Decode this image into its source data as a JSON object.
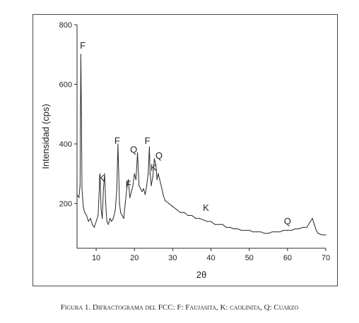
{
  "chart_data": {
    "type": "line",
    "xlabel": "2θ",
    "ylabel": "Intensidad (cps)",
    "xlim": [
      5,
      70
    ],
    "ylim": [
      50,
      800
    ],
    "x_ticks": [
      10,
      20,
      30,
      40,
      50,
      60,
      70
    ],
    "y_ticks": [
      200,
      400,
      600,
      800
    ],
    "grid": false,
    "series": [
      {
        "x": [
          5,
          5.5,
          5.8,
          6.0,
          6.15,
          6.3,
          6.6,
          7.0,
          7.5,
          8.0,
          8.5,
          9.0,
          9.5,
          10.0,
          10.5,
          11.0,
          11.3,
          11.6,
          11.9,
          12.2,
          12.5,
          12.8,
          13.2,
          13.6,
          14.0,
          14.5,
          15.0,
          15.4,
          15.7,
          15.9,
          16.1,
          16.4,
          16.8,
          17.2,
          17.6,
          18.0,
          18.4,
          18.8,
          19.2,
          19.6,
          20.0,
          20.4,
          20.8,
          21.2,
          21.6,
          22.0,
          22.4,
          22.8,
          23.2,
          23.6,
          23.9,
          24.1,
          24.4,
          24.8,
          25.2,
          25.6,
          25.9,
          26.2,
          26.6,
          27.0,
          27.5,
          28.0,
          29.0,
          30.0,
          31.0,
          32.0,
          33.0,
          34.0,
          35.0,
          36.0,
          37.0,
          38.0,
          39.0,
          40.0,
          41.0,
          42.0,
          43.0,
          44.0,
          45.0,
          46.0,
          47.0,
          48.0,
          49.0,
          50.0,
          51.0,
          52.0,
          53.0,
          54.0,
          55.0,
          56.0,
          57.0,
          58.0,
          59.0,
          60.0,
          61.0,
          62.0,
          63.0,
          64.0,
          65.0,
          66.0,
          66.5,
          67.0,
          67.5,
          68.0,
          69.0,
          70.0
        ],
        "y": [
          230,
          220,
          260,
          700,
          500,
          250,
          190,
          170,
          160,
          140,
          150,
          130,
          120,
          140,
          160,
          300,
          180,
          150,
          250,
          300,
          200,
          140,
          130,
          150,
          140,
          150,
          180,
          250,
          400,
          300,
          200,
          170,
          160,
          150,
          200,
          250,
          280,
          220,
          240,
          260,
          300,
          280,
          370,
          260,
          250,
          240,
          250,
          230,
          260,
          300,
          390,
          300,
          260,
          290,
          350,
          330,
          280,
          300,
          280,
          260,
          230,
          210,
          200,
          190,
          180,
          170,
          170,
          160,
          160,
          150,
          150,
          145,
          140,
          140,
          130,
          130,
          130,
          120,
          120,
          115,
          115,
          110,
          110,
          110,
          105,
          105,
          105,
          100,
          100,
          105,
          105,
          105,
          110,
          110,
          110,
          115,
          115,
          120,
          120,
          140,
          150,
          130,
          110,
          100,
          95,
          95
        ]
      }
    ],
    "annotations": [
      {
        "text": "F",
        "x": 6.5,
        "y": 720
      },
      {
        "text": "F",
        "x": 15.5,
        "y": 400
      },
      {
        "text": "F",
        "x": 18.4,
        "y": 255
      },
      {
        "text": "F",
        "x": 23.4,
        "y": 400
      },
      {
        "text": "K",
        "x": 11.4,
        "y": 275
      },
      {
        "text": "K",
        "x": 25.0,
        "y": 310
      },
      {
        "text": "K",
        "x": 38.7,
        "y": 175
      },
      {
        "text": "Q",
        "x": 19.8,
        "y": 370
      },
      {
        "text": "Q",
        "x": 26.4,
        "y": 350
      },
      {
        "text": "Q",
        "x": 60.0,
        "y": 130
      }
    ]
  },
  "caption": {
    "label": "Figura 1.",
    "text": "Difractograma del FCC: F: Faujasita, K: caolinita, Q: Cuarzo"
  },
  "colors": {
    "line": "#2a2a2a",
    "frame": "#4a4a4a",
    "text": "#222222"
  }
}
